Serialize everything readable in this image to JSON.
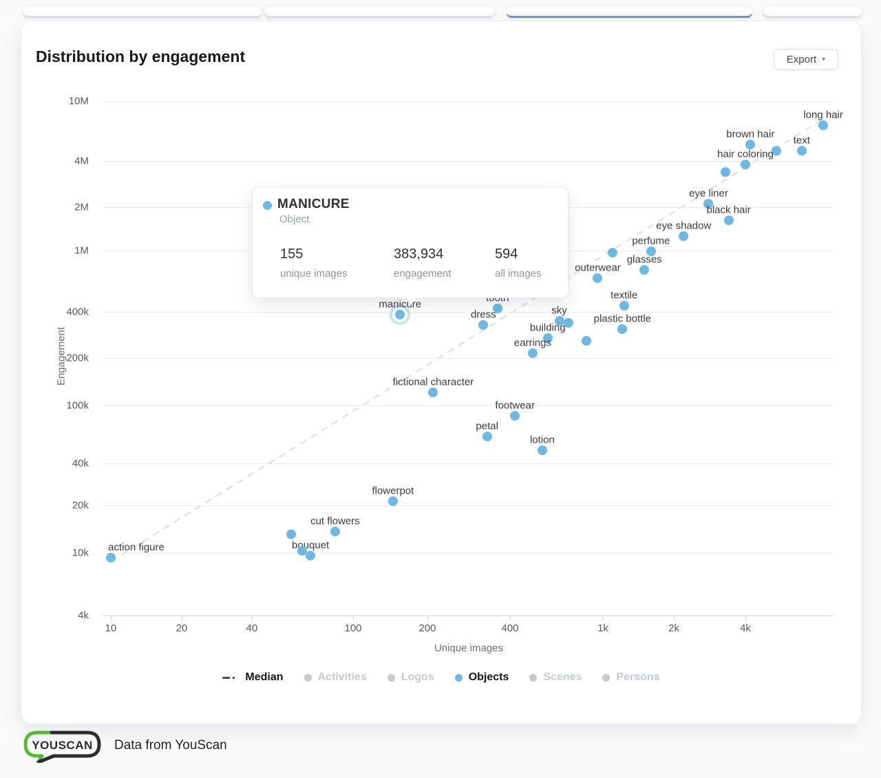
{
  "top_strip": {
    "active_card": 2
  },
  "header": {
    "title": "Distribution by engagement",
    "export_label": "Export"
  },
  "tooltip": {
    "title": "MANICURE",
    "category": "Object",
    "stats": [
      {
        "value": "155",
        "label": "unique images"
      },
      {
        "value": "383,934",
        "label": "engagement"
      },
      {
        "value": "594",
        "label": "all images"
      }
    ]
  },
  "chart_data": {
    "type": "scatter",
    "title": "Distribution by engagement",
    "xlabel": "Unique images",
    "ylabel": "Engagement",
    "x_scale": "log",
    "y_scale": "log",
    "xlim": [
      9,
      9500
    ],
    "ylim": [
      4000,
      10000000
    ],
    "grid": "horizontal-only",
    "point_color": "#6fb8e3",
    "x_ticks": [
      {
        "label": "10",
        "value": 10
      },
      {
        "label": "20",
        "value": 20
      },
      {
        "label": "40",
        "value": 40
      },
      {
        "label": "100",
        "value": 100
      },
      {
        "label": "200",
        "value": 200
      },
      {
        "label": "400",
        "value": 400
      },
      {
        "label": "1k",
        "value": 1000
      },
      {
        "label": "2k",
        "value": 2000
      },
      {
        "label": "4k",
        "value": 4000
      }
    ],
    "y_ticks": [
      {
        "label": "10M",
        "value": 10000000
      },
      {
        "label": "4M",
        "value": 4000000
      },
      {
        "label": "2M",
        "value": 2000000
      },
      {
        "label": "1M",
        "value": 1000000
      },
      {
        "label": "400k",
        "value": 400000
      },
      {
        "label": "200k",
        "value": 200000
      },
      {
        "label": "100k",
        "value": 100000
      },
      {
        "label": "40k",
        "value": 40000
      },
      {
        "label": "20k",
        "value": 20000
      },
      {
        "label": "10k",
        "value": 10000
      },
      {
        "label": "4k",
        "value": 4000
      }
    ],
    "series": [
      {
        "name": "Objects",
        "color": "#6fb8e3",
        "points": [
          {
            "label": "long hair",
            "x": 8500,
            "y": 6900000
          },
          {
            "label": "brown hair",
            "x": 4200,
            "y": 5150000
          },
          {
            "label": "text",
            "x": 6900,
            "y": 4700000
          },
          {
            "label": "",
            "x": 5400,
            "y": 4700000
          },
          {
            "label": "hair coloring",
            "x": 4000,
            "y": 3800000
          },
          {
            "label": "",
            "x": 3300,
            "y": 3400000
          },
          {
            "label": "eye liner",
            "x": 2800,
            "y": 2100000
          },
          {
            "label": "black hair",
            "x": 3400,
            "y": 1620000
          },
          {
            "label": "eye shadow",
            "x": 2200,
            "y": 1260000
          },
          {
            "label": "perfume",
            "x": 1600,
            "y": 990000
          },
          {
            "label": "",
            "x": 1100,
            "y": 970000
          },
          {
            "label": "glasses",
            "x": 1500,
            "y": 750000
          },
          {
            "label": "outerwear",
            "x": 950,
            "y": 660000
          },
          {
            "label": "textile",
            "x": 1230,
            "y": 440000
          },
          {
            "label": "tooth",
            "x": 360,
            "y": 420000
          },
          {
            "label": "manicure",
            "x": 155,
            "y": 383934,
            "highlight": true
          },
          {
            "label": "sky",
            "x": 650,
            "y": 350000
          },
          {
            "label": "",
            "x": 710,
            "y": 340000
          },
          {
            "label": "dress",
            "x": 320,
            "y": 330000
          },
          {
            "label": "plastic bottle",
            "x": 1210,
            "y": 310000
          },
          {
            "label": "building",
            "x": 580,
            "y": 270000
          },
          {
            "label": "",
            "x": 850,
            "y": 260000
          },
          {
            "label": "earrings",
            "x": 500,
            "y": 215000
          },
          {
            "label": "fictional character",
            "x": 210,
            "y": 121000
          },
          {
            "label": "footwear",
            "x": 420,
            "y": 85000
          },
          {
            "label": "petal",
            "x": 330,
            "y": 61000
          },
          {
            "label": "lotion",
            "x": 550,
            "y": 49000
          },
          {
            "label": "flowerpot",
            "x": 145,
            "y": 21400
          },
          {
            "label": "cut flowers",
            "x": 85,
            "y": 13600
          },
          {
            "label": "",
            "x": 57,
            "y": 13100
          },
          {
            "label": "bouquet",
            "x": 68,
            "y": 9600
          },
          {
            "label": "",
            "x": 63,
            "y": 10300
          },
          {
            "label": "action figure",
            "x": 10,
            "y": 9300,
            "label_dx": 37
          }
        ]
      }
    ],
    "median_line": {
      "name": "Median",
      "style": "dashed",
      "color": "#e2e2e2",
      "points": [
        {
          "x": 10,
          "y": 8800
        },
        {
          "x": 9400,
          "y": 8400000
        }
      ]
    }
  },
  "legend": {
    "items": [
      {
        "label": "Median",
        "type": "median-dash",
        "active": true
      },
      {
        "label": "Activities",
        "type": "dot",
        "active": false
      },
      {
        "label": "Logos",
        "type": "dot",
        "active": false
      },
      {
        "label": "Objects",
        "type": "dot",
        "active": true
      },
      {
        "label": "Scenes",
        "type": "dot",
        "active": false
      },
      {
        "label": "Persons",
        "type": "dot",
        "active": false
      }
    ]
  },
  "footer": {
    "logo_text": "YOUSCAN",
    "caption": "Data from YouScan"
  },
  "colors": {
    "accent_blue_point": "#6fb8e3",
    "active_tab_underline": "#6b96dd",
    "logo_green": "#59b832",
    "logo_dark": "#2b2e31"
  }
}
